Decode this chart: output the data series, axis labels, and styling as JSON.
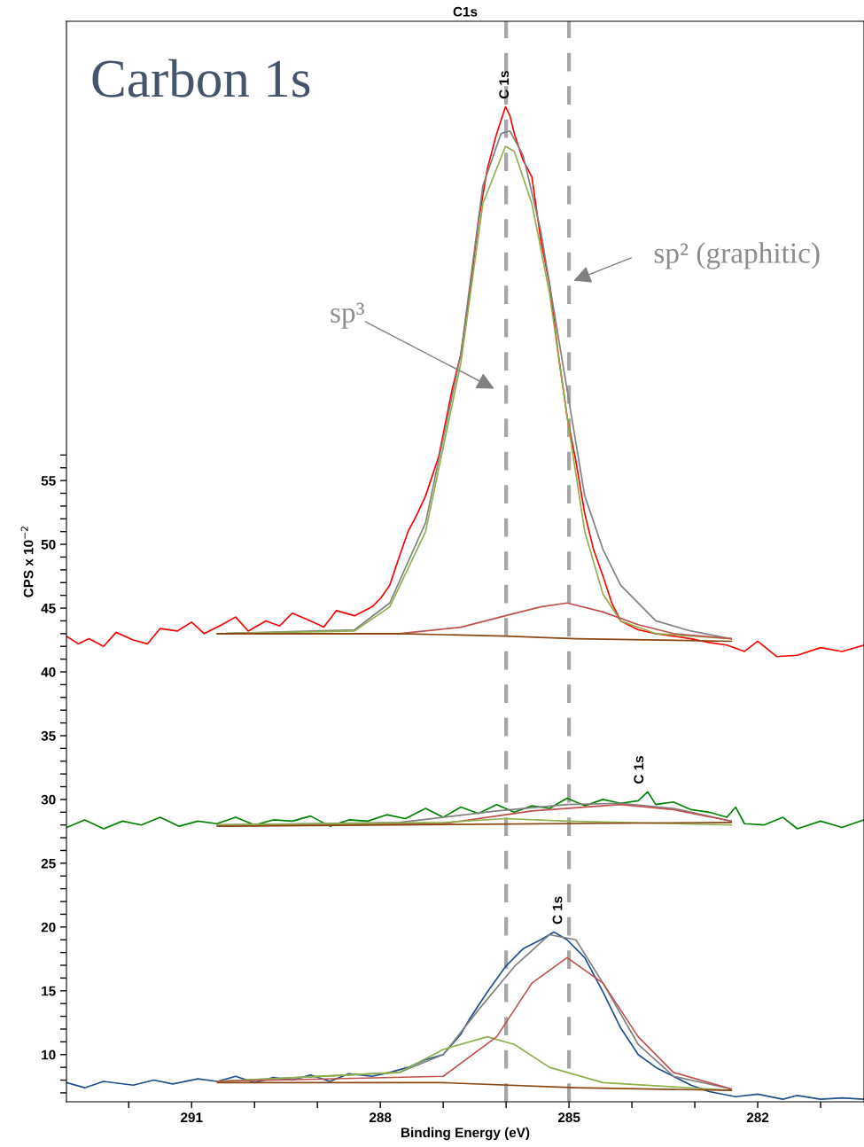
{
  "chart_data": {
    "type": "line",
    "title": "C1s",
    "xlabel": "Binding Energy (eV)",
    "ylabel": "CPS x 10$^{−2}$",
    "xlim": [
      292.99,
      280.31
    ],
    "ylim": [
      6.3,
      91
    ],
    "xticks": [
      {
        "value": 292,
        "label": null
      },
      291,
      {
        "value": 290,
        "label": null
      },
      {
        "value": 289,
        "label": null
      },
      288,
      {
        "value": 287,
        "label": null
      },
      {
        "value": 286,
        "label": null
      },
      285,
      {
        "value": 284,
        "label": null
      },
      {
        "value": 283,
        "label": null
      },
      282,
      {
        "value": 281,
        "label": null
      }
    ],
    "yticks": [
      {
        "value": 7,
        "label": null
      },
      {
        "value": 8,
        "label": null
      },
      {
        "value": 9,
        "label": null
      },
      10,
      {
        "value": 11,
        "label": null
      },
      {
        "value": 12,
        "label": null
      },
      {
        "value": 13,
        "label": null
      },
      {
        "value": 14,
        "label": null
      },
      15,
      {
        "value": 16,
        "label": null
      },
      {
        "value": 17,
        "label": null
      },
      {
        "value": 18,
        "label": null
      },
      {
        "value": 19,
        "label": null
      },
      20,
      {
        "value": 21,
        "label": null
      },
      {
        "value": 22,
        "label": null
      },
      {
        "value": 23,
        "label": null
      },
      {
        "value": 24,
        "label": null
      },
      25,
      {
        "value": 26,
        "label": null
      },
      {
        "value": 27,
        "label": null
      },
      {
        "value": 28,
        "label": null
      },
      {
        "value": 29,
        "label": null
      },
      30,
      {
        "value": 31,
        "label": null
      },
      {
        "value": 32,
        "label": null
      },
      {
        "value": 33,
        "label": null
      },
      {
        "value": 34,
        "label": null
      },
      35,
      {
        "value": 36,
        "label": null
      },
      {
        "value": 37,
        "label": null
      },
      {
        "value": 38,
        "label": null
      },
      {
        "value": 39,
        "label": null
      },
      40,
      {
        "value": 41,
        "label": null
      },
      {
        "value": 42,
        "label": null
      },
      {
        "value": 43,
        "label": null
      },
      {
        "value": 44,
        "label": null
      },
      45,
      {
        "value": 46,
        "label": null
      },
      {
        "value": 47,
        "label": null
      },
      {
        "value": 48,
        "label": null
      },
      {
        "value": 49,
        "label": null
      },
      50,
      {
        "value": 51,
        "label": null
      },
      {
        "value": 52,
        "label": null
      },
      {
        "value": 53,
        "label": null
      },
      {
        "value": 54,
        "label": null
      },
      55,
      {
        "value": 56,
        "label": null
      },
      {
        "value": 57,
        "label": null
      }
    ],
    "grid": false,
    "legend": false,
    "ref_lines": [
      {
        "axis": "x",
        "value": 286.0,
        "color": "#a6a6a6",
        "line_style": "dashed"
      },
      {
        "axis": "x",
        "value": 285.0,
        "color": "#a6a6a6",
        "line_style": "dashed"
      }
    ],
    "annotations": [
      "Carbon 1s",
      "sp³",
      "sp² (graphitic)",
      "C 1s",
      "C 1s",
      "C 1s"
    ],
    "series": [
      {
        "color": "#ff0000",
        "x": [
          292.99,
          292.8,
          292.63,
          292.4,
          292.2,
          291.93,
          291.7,
          291.5,
          291.23,
          291.0,
          290.8,
          290.52,
          290.3,
          290.1,
          289.82,
          289.6,
          289.4,
          289.11,
          288.9,
          288.7,
          288.41,
          288.13,
          287.99,
          287.85,
          287.7,
          287.56,
          287.42,
          287.28,
          287.07,
          286.86,
          286.72,
          286.58,
          286.44,
          286.3,
          286.15,
          286.01,
          285.94,
          285.87,
          285.73,
          285.59,
          285.45,
          285.31,
          285.17,
          285.03,
          284.89,
          284.75,
          284.61,
          284.46,
          284.32,
          284.18,
          283.9,
          283.62,
          283.34,
          283.06,
          282.77,
          282.49,
          282.21,
          282.0,
          281.7,
          281.37,
          281.0,
          280.66,
          280.31
        ],
        "values": [
          42.8,
          42.2,
          42.6,
          42.0,
          43.1,
          42.5,
          42.2,
          43.4,
          43.2,
          43.9,
          43.0,
          43.7,
          44.3,
          43.2,
          44.0,
          43.6,
          44.6,
          44.0,
          43.5,
          44.8,
          44.4,
          45.1,
          45.8,
          46.8,
          49.0,
          51.0,
          52.3,
          53.8,
          56.9,
          62.1,
          64.9,
          69.7,
          75.3,
          79.4,
          82.2,
          84.3,
          83.6,
          82.2,
          80.1,
          78.8,
          73.9,
          70.4,
          64.9,
          60.0,
          56.5,
          52.4,
          49.6,
          47.5,
          45.4,
          44.0,
          43.3,
          43.0,
          42.8,
          42.6,
          42.3,
          42.1,
          41.6,
          42.4,
          41.2,
          41.3,
          41.9,
          41.6,
          42.1
        ]
      },
      {
        "color": "#808080",
        "x": [
          290.59,
          288.41,
          287.85,
          287.28,
          286.72,
          286.37,
          286.08,
          285.94,
          285.73,
          285.45,
          285.03,
          284.75,
          284.46,
          284.18,
          283.62,
          283.06,
          282.42
        ],
        "values": [
          43.0,
          43.3,
          45.4,
          51.7,
          64.9,
          78.1,
          82.2,
          82.4,
          80.5,
          74.6,
          62.1,
          53.8,
          49.6,
          46.8,
          44.0,
          43.2,
          42.6
        ]
      },
      {
        "color": "#8db04a",
        "x": [
          290.59,
          288.41,
          287.85,
          287.28,
          286.72,
          286.37,
          286.01,
          285.87,
          285.59,
          285.31,
          285.03,
          284.75,
          284.46,
          284.18,
          283.62,
          282.42
        ],
        "values": [
          43.0,
          43.2,
          45.1,
          51.0,
          64.2,
          76.7,
          81.2,
          80.8,
          76.7,
          69.7,
          60.0,
          51.0,
          46.1,
          44.0,
          43.0,
          42.6
        ]
      },
      {
        "color": "#c0504d",
        "x": [
          290.59,
          287.7,
          286.72,
          286.01,
          285.45,
          285.03,
          284.46,
          283.9,
          283.34,
          282.42
        ],
        "values": [
          43.0,
          43.0,
          43.5,
          44.4,
          45.1,
          45.4,
          44.7,
          43.7,
          43.0,
          42.6
        ]
      },
      {
        "color": "#8b4513",
        "x": [
          290.59,
          287.7,
          286.01,
          284.89,
          282.42
        ],
        "values": [
          43.0,
          43.0,
          42.8,
          42.6,
          42.4
        ]
      },
      {
        "color": "#008000",
        "x": [
          292.99,
          292.7,
          292.4,
          292.1,
          291.8,
          291.5,
          291.2,
          290.9,
          290.6,
          290.3,
          290.0,
          289.7,
          289.4,
          289.11,
          288.8,
          288.5,
          288.2,
          287.9,
          287.6,
          287.28,
          287.0,
          286.72,
          286.44,
          286.15,
          285.87,
          285.59,
          285.31,
          285.03,
          284.75,
          284.46,
          284.18,
          283.9,
          283.75,
          283.62,
          283.34,
          283.06,
          282.77,
          282.49,
          282.35,
          282.21,
          281.9,
          281.6,
          281.37,
          281.0,
          280.66,
          280.31
        ],
        "values": [
          27.8,
          28.4,
          27.7,
          28.3,
          28.0,
          28.6,
          27.9,
          28.3,
          28.1,
          28.6,
          28.0,
          28.4,
          28.3,
          28.7,
          27.9,
          28.4,
          28.3,
          28.8,
          28.5,
          29.3,
          28.6,
          29.4,
          28.9,
          29.6,
          29.0,
          29.5,
          29.3,
          30.1,
          29.5,
          30.0,
          29.7,
          29.9,
          30.6,
          29.6,
          29.8,
          29.2,
          29.0,
          28.6,
          29.4,
          28.1,
          28.0,
          28.6,
          27.7,
          28.3,
          27.8,
          28.4
        ]
      },
      {
        "color": "#808080",
        "x": [
          290.59,
          287.7,
          286.15,
          285.03,
          284.18,
          283.34,
          282.42
        ],
        "values": [
          28.0,
          28.2,
          29.1,
          29.6,
          29.7,
          29.3,
          28.3
        ]
      },
      {
        "color": "#c0504d",
        "x": [
          290.59,
          287.0,
          285.59,
          284.18,
          283.34,
          282.42
        ],
        "values": [
          28.0,
          28.1,
          29.1,
          29.6,
          29.2,
          28.3
        ]
      },
      {
        "color": "#8db04a",
        "x": [
          290.59,
          287.0,
          286.01,
          285.03,
          282.42
        ],
        "values": [
          28.0,
          28.2,
          28.5,
          28.3,
          28.0
        ]
      },
      {
        "color": "#8b4513",
        "x": [
          290.59,
          282.42
        ],
        "values": [
          27.9,
          28.2
        ]
      },
      {
        "color": "#1f4e8c",
        "x": [
          292.99,
          292.7,
          292.4,
          291.93,
          291.6,
          291.3,
          290.9,
          290.59,
          290.3,
          290.0,
          289.7,
          289.4,
          289.11,
          288.8,
          288.5,
          288.13,
          287.85,
          287.56,
          287.28,
          287.0,
          286.72,
          286.58,
          286.3,
          286.01,
          285.73,
          285.45,
          285.24,
          285.03,
          284.75,
          284.46,
          284.18,
          283.9,
          283.62,
          283.34,
          283.06,
          282.77,
          282.35,
          282.0,
          281.6,
          281.37,
          281.0,
          280.66,
          280.31
        ],
        "values": [
          7.8,
          7.4,
          7.9,
          7.6,
          8.0,
          7.7,
          8.1,
          7.9,
          8.3,
          7.8,
          8.2,
          8.0,
          8.4,
          7.9,
          8.5,
          8.3,
          8.6,
          9.0,
          9.6,
          10.0,
          11.6,
          12.8,
          14.9,
          16.9,
          18.3,
          19.0,
          19.6,
          19.0,
          17.6,
          14.9,
          12.1,
          10.0,
          9.0,
          8.3,
          7.6,
          7.1,
          6.7,
          6.9,
          6.5,
          6.8,
          6.5,
          6.6,
          6.5
        ]
      },
      {
        "color": "#808080",
        "x": [
          290.59,
          287.7,
          287.0,
          286.44,
          285.87,
          285.31,
          284.89,
          284.46,
          283.9,
          283.34,
          282.42
        ],
        "values": [
          7.9,
          8.6,
          10.0,
          13.5,
          16.9,
          19.4,
          19.0,
          15.6,
          10.8,
          8.3,
          7.3
        ]
      },
      {
        "color": "#8db04a",
        "x": [
          290.59,
          287.7,
          287.0,
          286.3,
          285.87,
          285.31,
          284.46,
          282.42
        ],
        "values": [
          7.9,
          8.6,
          10.4,
          11.4,
          10.8,
          9.0,
          7.8,
          7.2
        ]
      },
      {
        "color": "#c0504d",
        "x": [
          290.59,
          287.0,
          286.15,
          285.59,
          285.03,
          284.46,
          283.9,
          283.34,
          282.42
        ],
        "values": [
          7.9,
          8.3,
          11.4,
          15.6,
          17.6,
          15.6,
          11.4,
          8.6,
          7.3
        ]
      },
      {
        "color": "#8b4513",
        "x": [
          290.59,
          287.0,
          284.89,
          282.42
        ],
        "values": [
          7.8,
          7.8,
          7.4,
          7.2
        ]
      }
    ]
  }
}
